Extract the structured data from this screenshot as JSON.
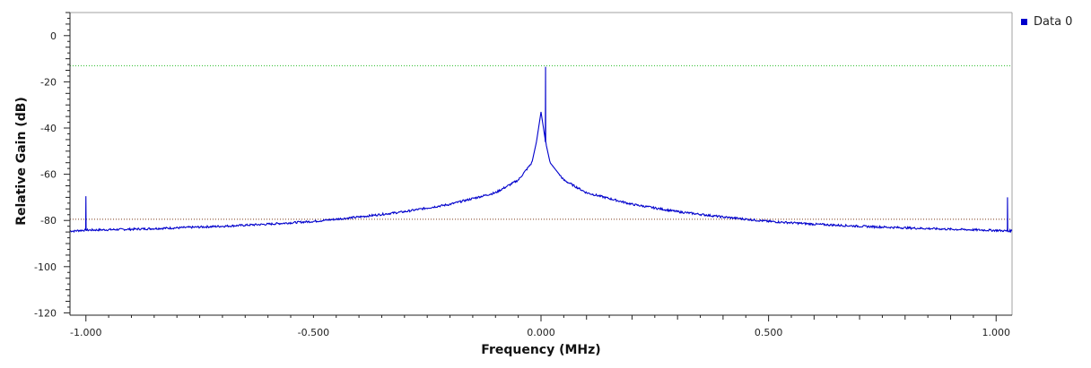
{
  "chart_data": {
    "type": "line",
    "xlabel": "Frequency (MHz)",
    "ylabel": "Relative Gain (dB)",
    "xlim": [
      -1.035,
      1.035
    ],
    "ylim": [
      -121,
      10
    ],
    "x_ticks": [
      -1.0,
      -0.5,
      0.0,
      0.5,
      1.0
    ],
    "x_tick_labels": [
      "-1.000",
      "-0.500",
      "0.000",
      "0.500",
      "1.000"
    ],
    "y_ticks": [
      0,
      -20,
      -40,
      -60,
      -80,
      -100,
      -120
    ],
    "y_tick_labels": [
      "0",
      "-20",
      "-40",
      "-60",
      "-80",
      "-100",
      "-120"
    ],
    "grid": false,
    "legend_position": "top-right",
    "series": [
      {
        "name": "Data 0",
        "color": "#0000cc",
        "x": [
          -1.035,
          -1.025,
          -1.02,
          -1.0,
          -0.9,
          -0.8,
          -0.7,
          -0.6,
          -0.5,
          -0.4,
          -0.3,
          -0.2,
          -0.1,
          -0.05,
          -0.02,
          -0.01,
          0.0,
          0.01,
          0.02,
          0.05,
          0.1,
          0.2,
          0.3,
          0.4,
          0.5,
          0.6,
          0.7,
          0.8,
          0.9,
          1.0,
          1.02,
          1.025,
          1.035
        ],
        "y": [
          -84.5,
          -84.6,
          -84.4,
          -84.2,
          -83.8,
          -83.2,
          -82.5,
          -81.6,
          -80.4,
          -78.5,
          -76.2,
          -73.0,
          -68.0,
          -62.5,
          -55.0,
          -46.0,
          -33.0,
          -46.0,
          -55.0,
          -62.5,
          -68.0,
          -73.0,
          -76.2,
          -78.5,
          -80.4,
          -81.6,
          -82.5,
          -83.2,
          -83.8,
          -84.3,
          -84.5,
          -84.6,
          -84.4
        ]
      }
    ],
    "spikes": [
      {
        "x": -1.0,
        "y": -69.5
      },
      {
        "x": 0.01,
        "y": -13.5
      },
      {
        "x": 1.025,
        "y": -70.0
      }
    ],
    "reference_lines": [
      {
        "y": -13,
        "color": "#22bb22",
        "style": "dotted"
      },
      {
        "y": -79.5,
        "color": "#7a3a1a",
        "style": "dotted"
      }
    ]
  }
}
